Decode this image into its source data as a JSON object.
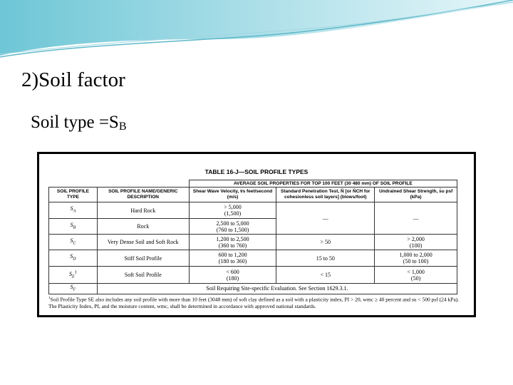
{
  "heading": "2)Soil factor",
  "soil_type": {
    "text": "Soil type =S",
    "subscript": "B"
  },
  "table": {
    "title": "TABLE 16-J—SOIL PROFILE TYPES",
    "group_header": "AVERAGE SOIL PROPERTIES FOR TOP 100 FEET (30 480 mm) OF SOIL PROFILE",
    "columns": [
      "SOIL PROFILE TYPE",
      "SOIL PROFILE NAME/GENERIC DESCRIPTION",
      "Shear Wave Velocity, v̄s feet/second (m/s)",
      "Standard Penetration Test, N̄ [or N̄CH for cohesionless soil layers] (blows/foot)",
      "Undrained Shear Strength, s̄u psf (kPa)"
    ],
    "rows": [
      {
        "type": {
          "base": "S",
          "sub": "A"
        },
        "name": "Hard Rock",
        "velocity": [
          "> 5,000",
          "(1,500)"
        ],
        "penetration": "—",
        "strength": [
          "—"
        ]
      },
      {
        "type": {
          "base": "S",
          "sub": "B"
        },
        "name": "Rock",
        "velocity": [
          "2,500 to 5,000",
          "(760 to 1,500)"
        ]
      },
      {
        "type": {
          "base": "S",
          "sub": "C"
        },
        "name": "Very Dense Soil and Soft Rock",
        "velocity": [
          "1,200 to 2,500",
          "(360 to 760)"
        ],
        "penetration": "> 50",
        "strength": [
          "> 2,000",
          "(100)"
        ]
      },
      {
        "type": {
          "base": "S",
          "sub": "D"
        },
        "name": "Stiff Soil Profile",
        "velocity": [
          "600 to 1,200",
          "(180 to 360)"
        ],
        "penetration": "15 to 50",
        "strength": [
          "1,000 to 2,000",
          "(50 to 100)"
        ]
      },
      {
        "type": {
          "base": "S",
          "sub": "E",
          "sup": "1"
        },
        "name": "Soft Soil Profile",
        "velocity": [
          "< 600",
          "(180)"
        ],
        "penetration": "< 15",
        "strength": [
          "< 1,000",
          "(50)"
        ]
      },
      {
        "type": {
          "base": "S",
          "sub": "F"
        },
        "name": "Soil Requiring Site-specific Evaluation. See Section 1629.3.1."
      }
    ],
    "footnote": {
      "mark": "1",
      "text": "Soil Profile Type SE also includes any soil profile with more than 10 feet (3048 mm) of soft clay defined as a soil with a plasticity index, PI > 20, wmc ≥ 40 percent and su < 500 psf (24 kPa). The Plasticity Index, PI, and the moisture content, wmc, shall be determined in accordance with approved national standards."
    }
  }
}
